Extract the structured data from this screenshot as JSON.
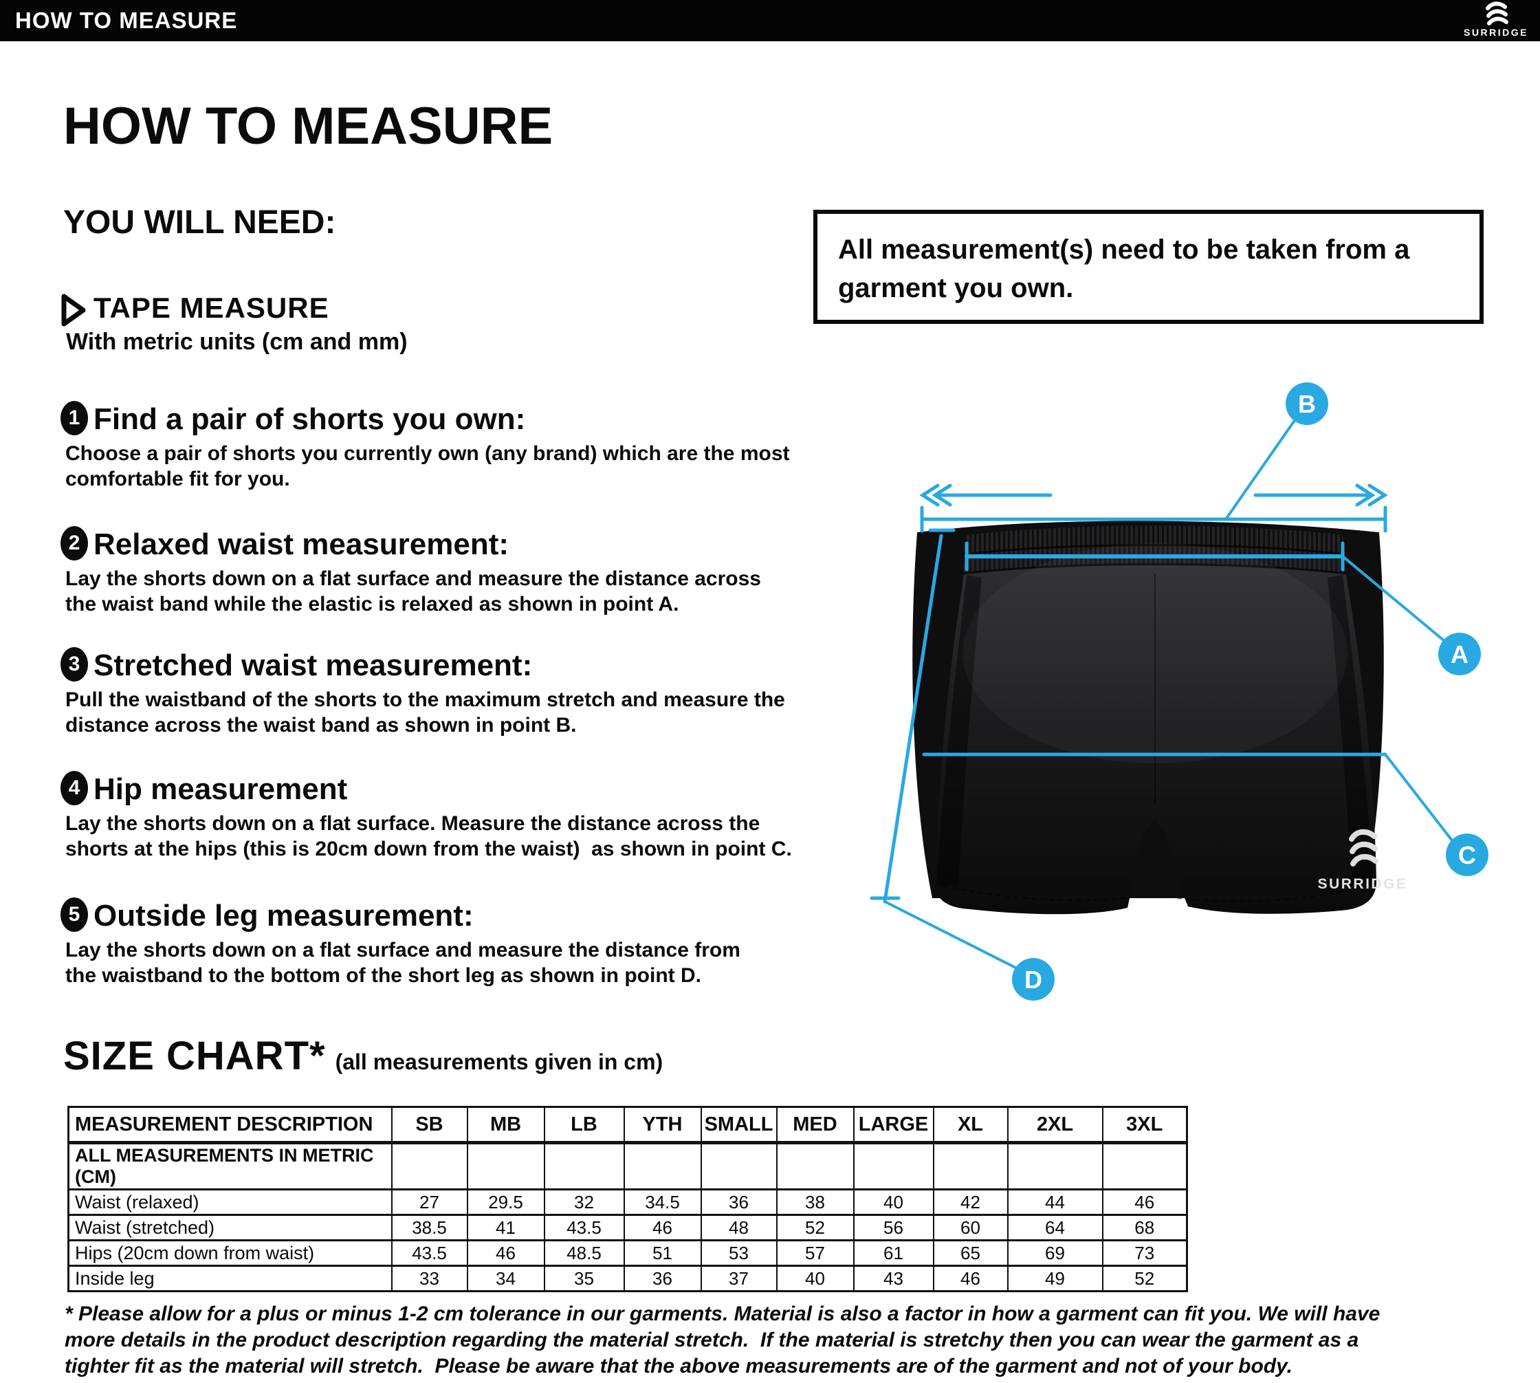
{
  "topbar": {
    "title": "HOW TO MEASURE",
    "brand": "SURRIDGE"
  },
  "page": {
    "title": "HOW TO MEASURE",
    "you_will_need": "YOU WILL NEED:",
    "tape_measure": {
      "label": "TAPE MEASURE",
      "sub": "With metric units (cm and mm)"
    },
    "note": {
      "lines": [
        "All measurement(s) need to be taken from a",
        "garment you own."
      ]
    }
  },
  "steps": [
    {
      "num": "1",
      "heading": "Find a pair of shorts you own:",
      "body": [
        "Choose a pair of shorts you currently own (any brand) which are the most",
        "comfortable fit for you."
      ]
    },
    {
      "num": "2",
      "heading": "Relaxed waist measurement:",
      "body": [
        "Lay the shorts down on a flat surface and measure the distance across",
        "the waist band while the elastic is relaxed as shown in point A."
      ]
    },
    {
      "num": "3",
      "heading": "Stretched waist measurement:",
      "body": [
        "Pull the waistband of the shorts to the maximum stretch and measure the",
        "distance across the waist band as shown in point B."
      ]
    },
    {
      "num": "4",
      "heading": "Hip measurement",
      "body": [
        "Lay the shorts down on a flat surface. Measure the distance across the",
        "shorts at the hips (this is 20cm down from the waist)  as shown in point C."
      ]
    },
    {
      "num": "5",
      "heading": "Outside leg measurement:",
      "body": [
        "Lay the shorts down on a flat surface and measure the distance from",
        "the waistband to the bottom of the short leg as shown in point D."
      ]
    }
  ],
  "diagram": {
    "labels": {
      "a": "A",
      "b": "B",
      "c": "C",
      "d": "D"
    },
    "accent_color": "#29a9e1",
    "garment_brand": "SURRIDGE"
  },
  "size_chart": {
    "title": "SIZE CHART*",
    "subtitle": "(all measurements given in cm)",
    "columns": [
      "MEASUREMENT DESCRIPTION",
      "SB",
      "MB",
      "LB",
      "YTH",
      "SMALL",
      "MED",
      "LARGE",
      "XL",
      "2XL",
      "3XL"
    ],
    "metric_note_row": "ALL MEASUREMENTS IN METRIC (CM)",
    "rows": [
      {
        "label": "Waist (relaxed)",
        "values": [
          "27",
          "29.5",
          "32",
          "34.5",
          "36",
          "38",
          "40",
          "42",
          "44",
          "46"
        ]
      },
      {
        "label": "Waist (stretched)",
        "values": [
          "38.5",
          "41",
          "43.5",
          "46",
          "48",
          "52",
          "56",
          "60",
          "64",
          "68"
        ]
      },
      {
        "label": "Hips (20cm down from waist)",
        "values": [
          "43.5",
          "46",
          "48.5",
          "51",
          "53",
          "57",
          "61",
          "65",
          "69",
          "73"
        ]
      },
      {
        "label": "Inside leg",
        "values": [
          "33",
          "34",
          "35",
          "36",
          "37",
          "40",
          "43",
          "46",
          "49",
          "52"
        ]
      }
    ]
  },
  "footer": {
    "lines": [
      "* Please allow for a plus or minus 1-2 cm tolerance in our garments. Material is also a factor in how a garment can fit you. We will have",
      "more details in the product description regarding the material stretch.  If the material is stretchy then you can wear the garment as a",
      "tighter fit as the material will stretch.  Please be aware that the above measurements are of the garment and not of your body."
    ]
  }
}
